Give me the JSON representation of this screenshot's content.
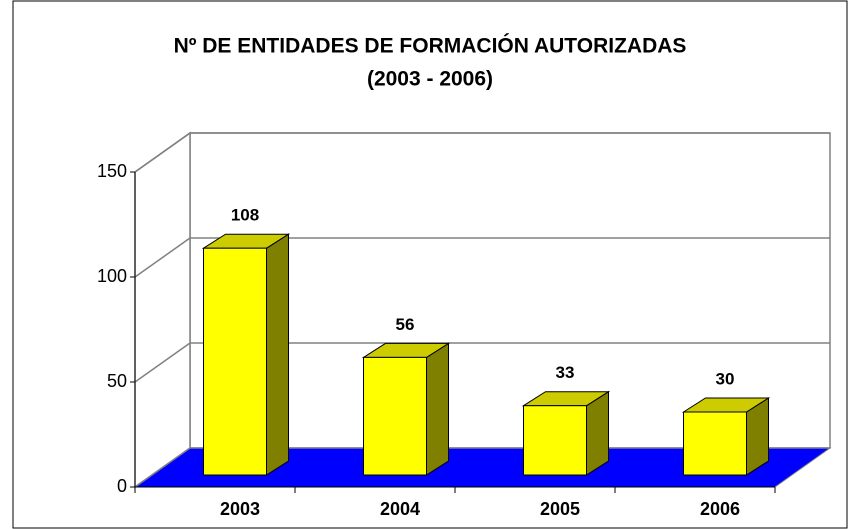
{
  "chart_data": {
    "type": "bar3d",
    "title": "Nº DE ENTIDADES DE FORMACIÓN AUTORIZADAS",
    "subtitle": "(2003 -  2006)",
    "categories": [
      "2003",
      "2004",
      "2005",
      "2006"
    ],
    "values": [
      108,
      56,
      33,
      30
    ],
    "color": "#ffff00",
    "floor_color": "#0000ff",
    "ylim": [
      0,
      150
    ],
    "yticks": [
      0,
      50,
      100,
      150
    ],
    "grid": true
  }
}
